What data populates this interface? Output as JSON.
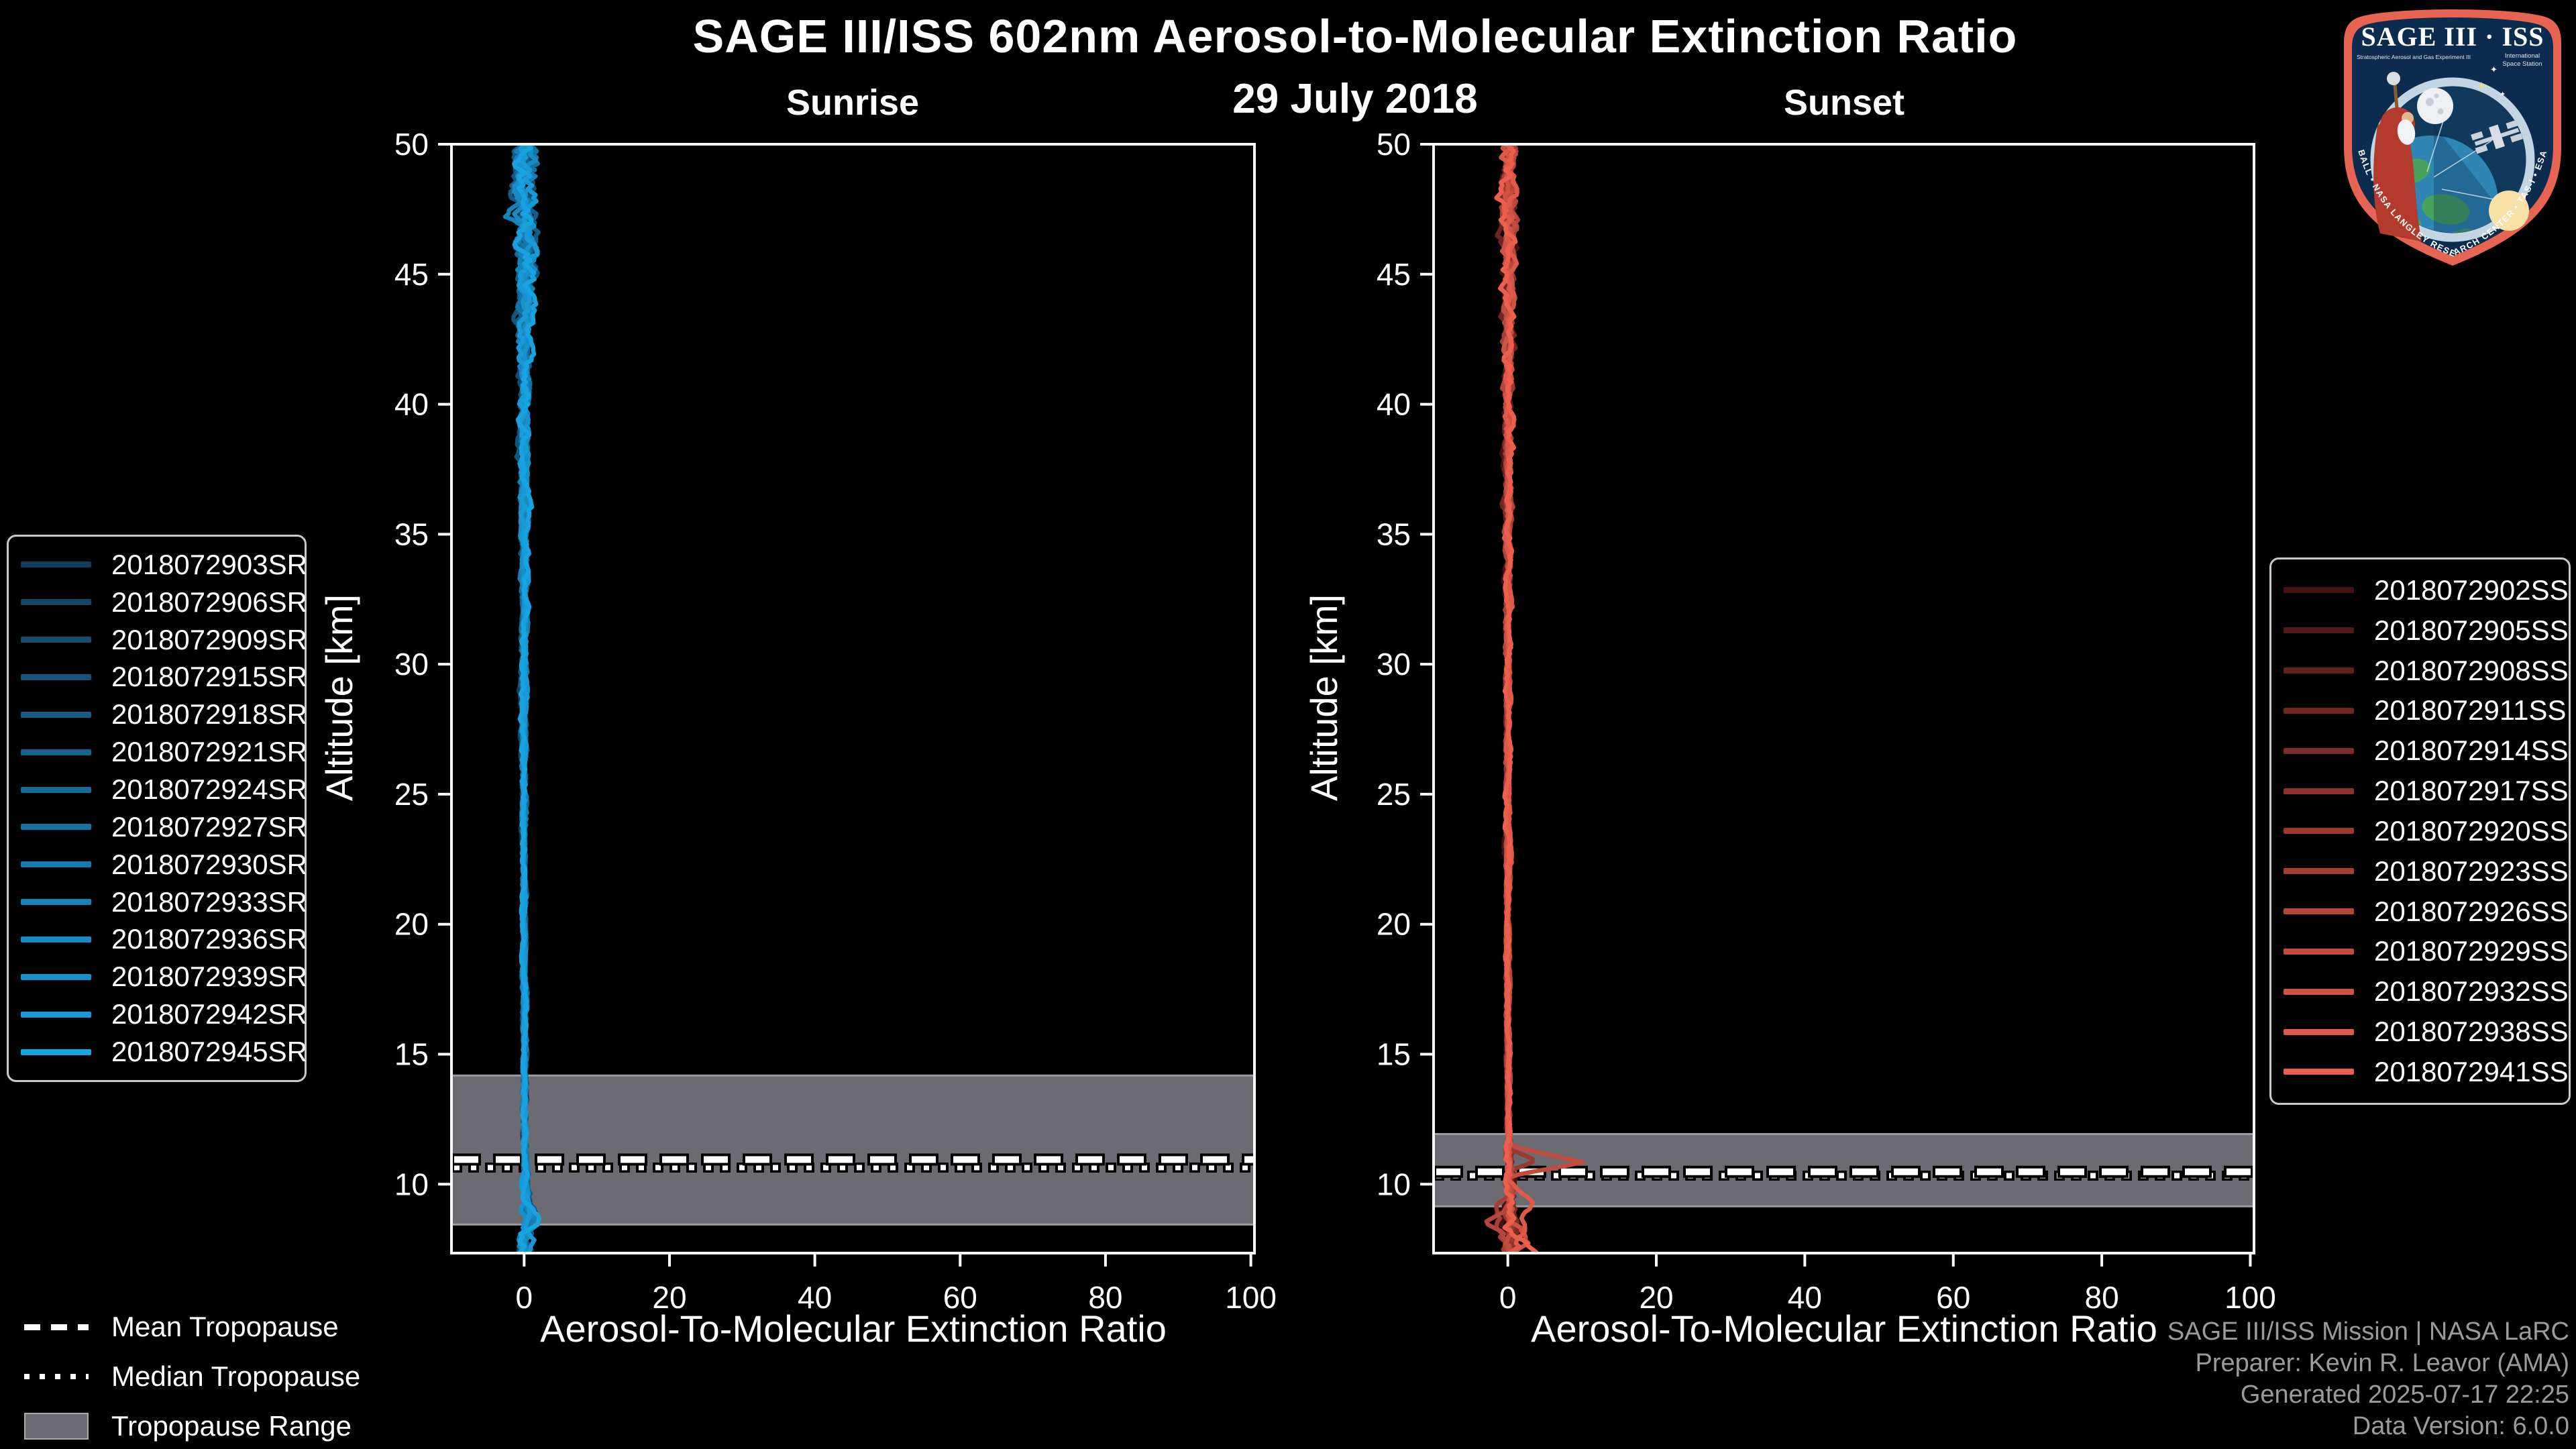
{
  "header": {
    "title": "SAGE III/ISS 602nm Aerosol-to-Molecular Extinction Ratio",
    "date": "29 July 2018"
  },
  "chart_data": [
    {
      "type": "line",
      "id": "sunrise",
      "title": "Sunrise",
      "xlabel": "Aerosol-To-Molecular Extinction Ratio",
      "ylabel": "Altitude [km]",
      "xlim": [
        -10,
        100.5
      ],
      "ylim": [
        7.35,
        50
      ],
      "xticks": [
        0,
        20,
        40,
        60,
        80,
        100
      ],
      "yticks": [
        10,
        15,
        20,
        25,
        30,
        35,
        40,
        45,
        50
      ],
      "grid": false,
      "legend_position": "outside-left",
      "band_color": "#6B6B71",
      "band_edge_color": "#9B9BA2",
      "tropopause": {
        "mean_km": 10.95,
        "median_km": 10.64,
        "range_km": [
          8.45,
          14.18
        ]
      },
      "line_width": 6.5,
      "seed": 11,
      "series": [
        {
          "name": "2018072903SR",
          "color": "#123E5E"
        },
        {
          "name": "2018072906SR",
          "color": "#124668"
        },
        {
          "name": "2018072909SR",
          "color": "#134D72"
        },
        {
          "name": "2018072915SR",
          "color": "#13557C"
        },
        {
          "name": "2018072918SR",
          "color": "#145D86"
        },
        {
          "name": "2018072921SR",
          "color": "#146490"
        },
        {
          "name": "2018072924SR",
          "color": "#156C9A"
        },
        {
          "name": "2018072927SR",
          "color": "#1574A4"
        },
        {
          "name": "2018072930SR",
          "color": "#167BAE"
        },
        {
          "name": "2018072933SR",
          "color": "#1683B8"
        },
        {
          "name": "2018072936SR",
          "color": "#178BC2"
        },
        {
          "name": "2018072939SR",
          "color": "#1792CC"
        },
        {
          "name": "2018072942SR",
          "color": "#189AD6"
        },
        {
          "name": "2018072945SR",
          "color": "#18A2E0"
        }
      ],
      "profile": {
        "note": "All profiles hug ratio ~0 from 50 km down to ~8 km; jitter grows above 40 km; small positive excursions below 9.5 km.",
        "anchors": [
          [
            50,
            0.25
          ],
          [
            46,
            0.15
          ],
          [
            40,
            0.05
          ],
          [
            32,
            0
          ],
          [
            20,
            0
          ],
          [
            14,
            0.05
          ],
          [
            11,
            0.1
          ],
          [
            10,
            0.2
          ],
          [
            9.4,
            0.45
          ],
          [
            8.8,
            1.0
          ],
          [
            8.3,
            0.2
          ],
          [
            7.8,
            -0.2
          ],
          [
            7.35,
            0.1
          ]
        ],
        "jitter": [
          [
            50,
            1.6
          ],
          [
            47,
            1.5
          ],
          [
            44,
            1.05
          ],
          [
            40,
            0.75
          ],
          [
            34,
            0.5
          ],
          [
            28,
            0.4
          ],
          [
            20,
            0.3
          ],
          [
            14,
            0.3
          ],
          [
            11,
            0.35
          ],
          [
            9.5,
            0.55
          ],
          [
            8.5,
            0.85
          ],
          [
            7.35,
            0.9
          ]
        ]
      },
      "features": [
        {
          "series": 13,
          "type": "bump",
          "center_km": 8.55,
          "width_km": 0.35,
          "amplitude": 2.4
        },
        {
          "series": 11,
          "type": "bump",
          "center_km": 9.0,
          "width_km": 0.3,
          "amplitude": -1.5
        },
        {
          "series": 9,
          "type": "bump",
          "center_km": 8.4,
          "width_km": 0.35,
          "amplitude": 1.6
        },
        {
          "series": 12,
          "type": "bump",
          "center_km": 7.8,
          "width_km": 0.4,
          "amplitude": 1.3
        }
      ]
    },
    {
      "type": "line",
      "id": "sunset",
      "title": "Sunset",
      "xlabel": "Aerosol-To-Molecular Extinction Ratio",
      "ylabel": "Altitude [km]",
      "xlim": [
        -10,
        100.5
      ],
      "ylim": [
        7.35,
        50
      ],
      "xticks": [
        0,
        20,
        40,
        60,
        80,
        100
      ],
      "yticks": [
        10,
        15,
        20,
        25,
        30,
        35,
        40,
        45,
        50
      ],
      "grid": false,
      "legend_position": "outside-right",
      "band_color": "#6B6B71",
      "band_edge_color": "#9B9BA2",
      "tropopause": {
        "mean_km": 10.48,
        "median_km": 10.33,
        "range_km": [
          9.15,
          11.93
        ]
      },
      "line_width": 6.5,
      "seed": 23,
      "series": [
        {
          "name": "2018072902SS",
          "color": "#451313"
        },
        {
          "name": "2018072905SS",
          "color": "#531918"
        },
        {
          "name": "2018072908SS",
          "color": "#61201D"
        },
        {
          "name": "2018072911SS",
          "color": "#6F2621"
        },
        {
          "name": "2018072914SS",
          "color": "#7D2C26"
        },
        {
          "name": "2018072917SS",
          "color": "#8B332B"
        },
        {
          "name": "2018072920SS",
          "color": "#993930"
        },
        {
          "name": "2018072923SS",
          "color": "#A63F35"
        },
        {
          "name": "2018072926SS",
          "color": "#B4463A"
        },
        {
          "name": "2018072929SS",
          "color": "#C24C3E"
        },
        {
          "name": "2018072932SS",
          "color": "#D05243"
        },
        {
          "name": "2018072938SS",
          "color": "#DE5948"
        },
        {
          "name": "2018072941SS",
          "color": "#EC5F4D"
        }
      ],
      "profile": {
        "note": "Profiles hug ratio ~0 from 50 km down; one event spikes to ~10 near 10.9 km; wiggles up to +/-3 below 9.5 km.",
        "anchors": [
          [
            50,
            0.15
          ],
          [
            45,
            0.1
          ],
          [
            40,
            0.05
          ],
          [
            30,
            0
          ],
          [
            20,
            0
          ],
          [
            13,
            0.05
          ],
          [
            11.5,
            0.15
          ],
          [
            10.8,
            0.25
          ],
          [
            10,
            0.3
          ],
          [
            9.2,
            0.35
          ],
          [
            8.6,
            0.3
          ],
          [
            8,
            0.45
          ],
          [
            7.35,
            0.7
          ]
        ],
        "jitter": [
          [
            50,
            1.15
          ],
          [
            46,
            0.95
          ],
          [
            42,
            0.7
          ],
          [
            36,
            0.5
          ],
          [
            28,
            0.35
          ],
          [
            20,
            0.28
          ],
          [
            13,
            0.3
          ],
          [
            10.5,
            0.6
          ],
          [
            9.2,
            1.0
          ],
          [
            7.35,
            1.25
          ]
        ]
      },
      "features": [
        {
          "series": 9,
          "type": "spur",
          "top_km": 11.5,
          "bottom_km": 10.3,
          "x_peak": 9.8
        },
        {
          "series": 6,
          "type": "spur",
          "top_km": 11.35,
          "bottom_km": 10.55,
          "x_peak": 3.2
        },
        {
          "series": 12,
          "type": "tail",
          "from_km": 8.35,
          "x_end": 3.4
        },
        {
          "series": 8,
          "type": "bump",
          "center_km": 8.5,
          "width_km": 0.45,
          "amplitude": -2.4
        },
        {
          "series": 11,
          "type": "bump",
          "center_km": 9.35,
          "width_km": 0.4,
          "amplitude": 2.2
        },
        {
          "series": 10,
          "type": "bump",
          "center_km": 7.9,
          "width_km": 0.5,
          "amplitude": 2.6
        },
        {
          "series": 7,
          "type": "bump",
          "center_km": 8.8,
          "width_km": 0.5,
          "amplitude": -1.4
        }
      ]
    }
  ],
  "tropopause_legend": {
    "items": [
      {
        "label": "Mean Tropopause",
        "style": "dashed"
      },
      {
        "label": "Median Tropopause",
        "style": "dotted"
      },
      {
        "label": "Tropopause Range",
        "style": "band"
      }
    ]
  },
  "footer": {
    "lines": [
      "SAGE III/ISS Mission | NASA LaRC",
      "Preparer: Kevin R. Leavor (AMA)",
      "Generated 2025-07-17 22:25",
      "Data Version: 6.0.0"
    ]
  },
  "logo": {
    "title": "SAGE III · ISS",
    "sub_left": "Stratospheric Aerosol and Gas Experiment III",
    "sub_right_1": "International",
    "sub_right_2": "Space Station",
    "ring_text": "BALL • NASA LANGLEY RESEARCH CENTER • TAS-I • ESA",
    "border_color": "#E76452",
    "field_color": "#0B2C4E"
  }
}
